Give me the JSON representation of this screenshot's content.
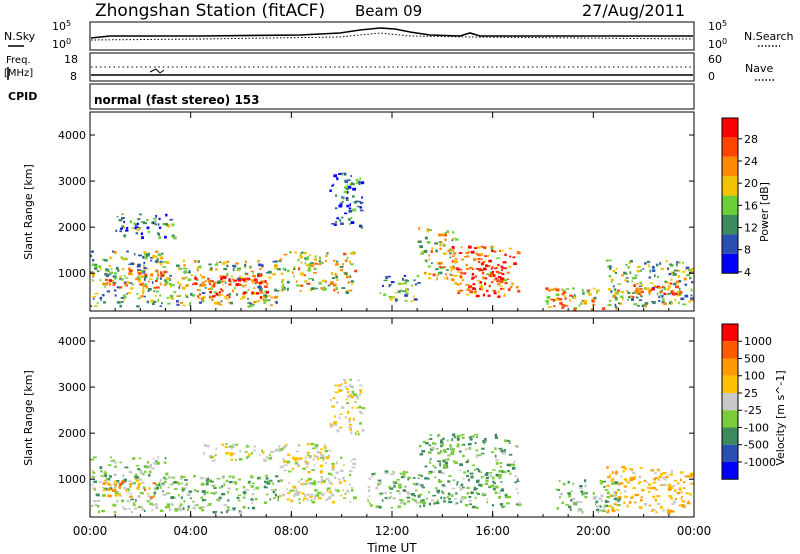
{
  "header": {
    "station_title": "Zhongshan Station (fitACF)",
    "beam": "Beam 09",
    "date": "27/Aug/2011"
  },
  "noise_panel": {
    "left_label": "N.Sky",
    "right_label": "N.Search",
    "left_ticks": [
      "10^5",
      "10^0"
    ],
    "right_ticks": [
      "10^5",
      "10^0"
    ]
  },
  "freq_panel": {
    "left_label_1": "Freq.",
    "left_label_2": "[MHz]",
    "right_label": "Nave",
    "left_ticks": [
      "18",
      "8"
    ],
    "right_ticks": [
      "60",
      "0"
    ]
  },
  "cpid": {
    "label": "CPID",
    "text": "normal (fast stereo) 153"
  },
  "x_axis": {
    "label": "Time UT",
    "ticks": [
      "00:00",
      "04:00",
      "08:00",
      "12:00",
      "16:00",
      "20:00",
      "00:00"
    ]
  },
  "colors": {
    "power": [
      "#0000ff",
      "#2a4fb0",
      "#3a8a5c",
      "#6ccf3a",
      "#f2c200",
      "#ff8a00",
      "#ff4400",
      "#ff0000"
    ],
    "velocity": [
      "#ff0000",
      "#ff5a00",
      "#ff9a00",
      "#ffc000",
      "#c8c8c8",
      "#7acc3a",
      "#3a8a5c",
      "#2a4fb0",
      "#0000ff"
    ]
  },
  "chart_data": [
    {
      "type": "heatmap",
      "title": "",
      "xlabel": "Time UT",
      "ylabel": "Slant Range [km]",
      "xlim": [
        0,
        24
      ],
      "ylim": [
        180,
        4500
      ],
      "y_ticks": [
        "1000",
        "2000",
        "3000",
        "4000"
      ],
      "colorbar": {
        "label": "Power [dB]",
        "ticks": [
          "4",
          "8",
          "12",
          "16",
          "20",
          "24",
          "28"
        ],
        "range": [
          0,
          30
        ]
      },
      "regions": [
        {
          "t0": 0.0,
          "t1": 3.0,
          "r0": 300,
          "r1": 1500,
          "value": 12
        },
        {
          "t0": 0.5,
          "t1": 3.0,
          "r0": 700,
          "r1": 1100,
          "value": 20
        },
        {
          "t0": 3.0,
          "t1": 7.5,
          "r0": 300,
          "r1": 1300,
          "value": 14
        },
        {
          "t0": 4.0,
          "t1": 7.0,
          "r0": 500,
          "r1": 1000,
          "value": 26
        },
        {
          "t0": 1.0,
          "t1": 3.5,
          "r0": 1800,
          "r1": 2300,
          "value": 8
        },
        {
          "t0": 7.5,
          "t1": 10.5,
          "r0": 600,
          "r1": 1500,
          "value": 16
        },
        {
          "t0": 9.5,
          "t1": 10.8,
          "r0": 2000,
          "r1": 3200,
          "value": 6
        },
        {
          "t0": 11.5,
          "t1": 13.0,
          "r0": 400,
          "r1": 1000,
          "value": 10
        },
        {
          "t0": 13.0,
          "t1": 14.5,
          "r0": 900,
          "r1": 2000,
          "value": 16
        },
        {
          "t0": 14.3,
          "t1": 17.0,
          "r0": 500,
          "r1": 1600,
          "value": 22
        },
        {
          "t0": 15.0,
          "t1": 16.5,
          "r0": 600,
          "r1": 1200,
          "value": 28
        },
        {
          "t0": 18.0,
          "t1": 21.0,
          "r0": 200,
          "r1": 700,
          "value": 18
        },
        {
          "t0": 20.5,
          "t1": 24.0,
          "r0": 300,
          "r1": 1300,
          "value": 12
        },
        {
          "t0": 21.5,
          "t1": 23.5,
          "r0": 500,
          "r1": 900,
          "value": 22
        }
      ]
    },
    {
      "type": "heatmap",
      "title": "",
      "xlabel": "Time UT",
      "ylabel": "Slant Range [km]",
      "xlim": [
        0,
        24
      ],
      "ylim": [
        180,
        4500
      ],
      "y_ticks": [
        "1000",
        "2000",
        "3000",
        "4000"
      ],
      "colorbar": {
        "label": "Velocity [m s^-1]",
        "ticks": [
          "1000",
          "500",
          "100",
          "25",
          "-25",
          "-100",
          "-500",
          "-1000"
        ],
        "range": [
          -1000,
          1000
        ]
      },
      "regions": [
        {
          "t0": 0.0,
          "t1": 3.0,
          "r0": 300,
          "r1": 1500,
          "value": -150
        },
        {
          "t0": 0.5,
          "t1": 2.5,
          "r0": 600,
          "r1": 1000,
          "value": 400
        },
        {
          "t0": 3.0,
          "t1": 7.5,
          "r0": 300,
          "r1": 1100,
          "value": -250
        },
        {
          "t0": 4.5,
          "t1": 9.5,
          "r0": 1400,
          "r1": 1800,
          "value": 0
        },
        {
          "t0": 7.5,
          "t1": 10.5,
          "r0": 500,
          "r1": 1500,
          "value": 0
        },
        {
          "t0": 9.5,
          "t1": 10.8,
          "r0": 2000,
          "r1": 3200,
          "value": 60
        },
        {
          "t0": 11.0,
          "t1": 13.0,
          "r0": 400,
          "r1": 1200,
          "value": -200
        },
        {
          "t0": 13.0,
          "t1": 17.0,
          "r0": 400,
          "r1": 2000,
          "value": -300
        },
        {
          "t0": 18.5,
          "t1": 21.0,
          "r0": 300,
          "r1": 1000,
          "value": -250
        },
        {
          "t0": 20.5,
          "t1": 24.0,
          "r0": 300,
          "r1": 1300,
          "value": 300
        }
      ]
    }
  ]
}
